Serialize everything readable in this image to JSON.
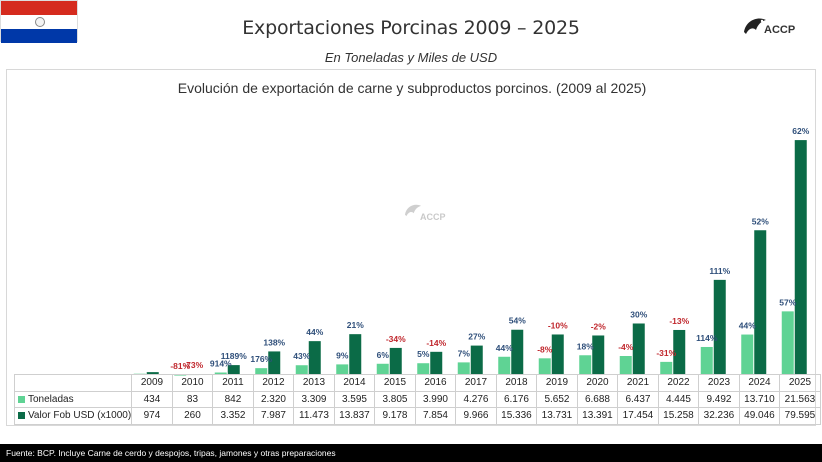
{
  "header": {
    "title": "Exportaciones Porcinas 2009 – 2025",
    "subtitle": "En Toneladas  y Miles de USD",
    "logo_text": "ACCP"
  },
  "footer": {
    "text": "Fuente: BCP. Incluye Carne de cerdo y despojos, tripas, jamones y otras preparaciones"
  },
  "colors": {
    "toneladas": "#5fd394",
    "valor": "#0b6b47",
    "pct_positive": "#2f4f7a",
    "pct_negative": "#c0272d"
  },
  "chart_data": {
    "type": "bar",
    "title": "Evolución de exportación de carne y subproductos porcinos. (2009 al 2025)",
    "categories": [
      "2009",
      "2010",
      "2011",
      "2012",
      "2013",
      "2014",
      "2015",
      "2016",
      "2017",
      "2018",
      "2019",
      "2020",
      "2021",
      "2022",
      "2023",
      "2024",
      "2025"
    ],
    "series": [
      {
        "name": "Toneladas",
        "values": [
          434,
          83,
          842,
          2320,
          3309,
          3595,
          3805,
          3990,
          4276,
          6176,
          5652,
          6688,
          6437,
          4445,
          9492,
          13710,
          21563
        ],
        "display": [
          "434",
          "83",
          "842",
          "2.320",
          "3.309",
          "3.595",
          "3.805",
          "3.990",
          "4.276",
          "6.176",
          "5.652",
          "6.688",
          "6.437",
          "4.445",
          "9.492",
          "13.710",
          "21.563"
        ],
        "pct_labels": [
          "",
          "-81%",
          "914%",
          "176%",
          "43%",
          "9%",
          "6%",
          "5%",
          "7%",
          "44%",
          "-8%",
          "18%",
          "-4%",
          "-31%",
          "114%",
          "44%",
          "57%"
        ]
      },
      {
        "name": "Valor Fob USD (x1000)",
        "values": [
          974,
          260,
          3352,
          7987,
          11473,
          13837,
          9178,
          7854,
          9966,
          15336,
          13731,
          13391,
          17454,
          15258,
          32236,
          49046,
          79595
        ],
        "display": [
          "974",
          "260",
          "3.352",
          "7.987",
          "11.473",
          "13.837",
          "9.178",
          "7.854",
          "9.966",
          "15.336",
          "13.731",
          "13.391",
          "17.454",
          "15.258",
          "32.236",
          "49.046",
          "79.595"
        ],
        "pct_labels": [
          "",
          "-73%",
          "1189%",
          "138%",
          "44%",
          "21%",
          "-34%",
          "-14%",
          "27%",
          "54%",
          "-10%",
          "-2%",
          "30%",
          "-13%",
          "111%",
          "52%",
          "62%"
        ]
      }
    ],
    "ylim": [
      0,
      82000
    ],
    "grid": false,
    "legend": "data table"
  }
}
